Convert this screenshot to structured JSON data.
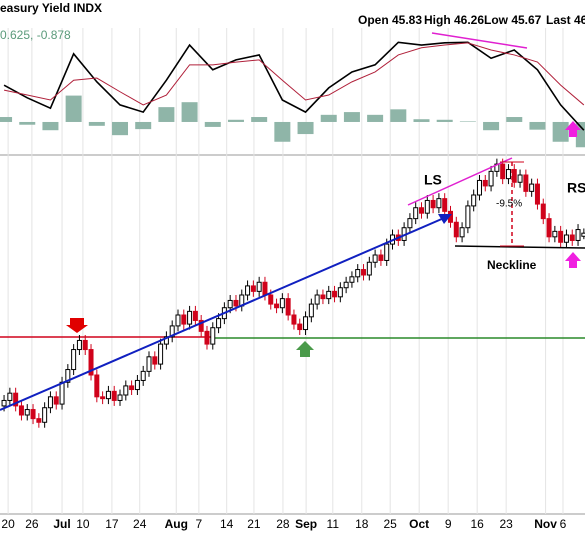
{
  "chart_data": {
    "type": "candlestick",
    "title": "easury Yield INDX",
    "header": [
      "Open 45.83",
      "High 46.26",
      "Low 45.67",
      "Last 46."
    ],
    "indicator_label": "0.625, -0.878",
    "annotations": [
      "LS",
      "RS",
      "Neckline",
      "-9.5%"
    ],
    "xlim": [
      -0.7,
      100.2
    ],
    "xticks": [
      {
        "value": 0.7,
        "label": "20"
      },
      {
        "value": 4.8,
        "label": "26"
      },
      {
        "value": 10,
        "label": "Jul"
      },
      {
        "value": 13.6,
        "label": "10"
      },
      {
        "value": 18.6,
        "label": "17"
      },
      {
        "value": 23.4,
        "label": "24"
      },
      {
        "value": 29.7,
        "label": "Aug"
      },
      {
        "value": 33.6,
        "label": "7"
      },
      {
        "value": 38.4,
        "label": "14"
      },
      {
        "value": 43.1,
        "label": "21"
      },
      {
        "value": 48.1,
        "label": "28"
      },
      {
        "value": 52.1,
        "label": "Sep"
      },
      {
        "value": 56.7,
        "label": "11"
      },
      {
        "value": 61.7,
        "label": "18"
      },
      {
        "value": 66.6,
        "label": "25"
      },
      {
        "value": 71.6,
        "label": "Oct"
      },
      {
        "value": 76.6,
        "label": "9"
      },
      {
        "value": 81.6,
        "label": "16"
      },
      {
        "value": 86.6,
        "label": "23"
      },
      {
        "value": 93.4,
        "label": "Nov"
      },
      {
        "value": 96.4,
        "label": "6"
      }
    ],
    "ylim": [
      30.5,
      50.3
    ],
    "up_color": "#000000",
    "down_color": "#d0021b",
    "open": [
      36.5,
      36.8,
      37.2,
      36.5,
      36.0,
      36.3,
      35.8,
      35.6,
      36.4,
      37.0,
      36.6,
      37.8,
      38.5,
      39.6,
      40.1,
      39.6,
      38.2,
      37.0,
      36.9,
      37.3,
      36.8,
      37.1,
      37.6,
      37.4,
      37.9,
      38.4,
      39.2,
      38.8,
      39.9,
      40.3,
      40.9,
      41.5,
      41.0,
      41.7,
      41.2,
      40.6,
      39.9,
      40.8,
      41.3,
      41.9,
      42.3,
      42.0,
      42.6,
      43.1,
      42.8,
      43.3,
      42.6,
      42.1,
      41.9,
      42.4,
      41.5,
      41.0,
      40.7,
      41.4,
      42.1,
      42.6,
      42.4,
      42.8,
      42.5,
      43.0,
      43.3,
      43.6,
      44.0,
      43.7,
      44.4,
      44.8,
      44.5,
      45.4,
      45.9,
      45.6,
      46.3,
      46.8,
      47.4,
      47.1,
      47.8,
      47.4,
      47.9,
      47.2,
      46.6,
      45.8,
      46.3,
      47.5,
      48.1,
      48.9,
      48.6,
      49.4,
      49.8,
      49.0,
      49.5,
      48.8,
      49.2,
      48.3,
      48.7,
      47.6,
      46.8,
      45.8,
      46.1,
      45.5,
      45.9,
      45.6,
      45.83
    ],
    "high": [
      37.1,
      37.5,
      37.5,
      36.8,
      36.6,
      36.6,
      36.1,
      36.7,
      37.3,
      37.3,
      38.1,
      38.8,
      39.9,
      40.4,
      40.4,
      39.9,
      38.5,
      37.3,
      37.6,
      37.6,
      37.4,
      37.9,
      37.9,
      38.2,
      38.7,
      39.5,
      39.5,
      40.2,
      40.6,
      41.2,
      41.8,
      41.8,
      42.0,
      42.0,
      41.5,
      40.9,
      41.1,
      41.6,
      42.2,
      42.6,
      42.6,
      42.9,
      43.4,
      43.4,
      43.6,
      43.6,
      42.9,
      42.4,
      42.7,
      42.7,
      41.8,
      41.3,
      41.7,
      42.4,
      42.9,
      42.9,
      43.1,
      43.1,
      43.3,
      43.6,
      43.9,
      44.3,
      44.3,
      44.7,
      45.1,
      45.1,
      45.7,
      46.2,
      46.2,
      46.6,
      47.1,
      47.7,
      47.7,
      48.1,
      48.1,
      48.2,
      48.2,
      47.5,
      46.9,
      46.6,
      47.8,
      48.4,
      49.2,
      49.2,
      49.7,
      50.1,
      50.1,
      49.8,
      49.8,
      49.5,
      49.5,
      49.0,
      49.0,
      47.9,
      47.1,
      46.4,
      46.4,
      46.2,
      46.2,
      46.5,
      46.26
    ],
    "low": [
      36.2,
      36.5,
      36.2,
      35.7,
      35.7,
      35.5,
      35.3,
      35.3,
      36.1,
      36.3,
      36.3,
      37.5,
      38.2,
      39.3,
      39.3,
      37.9,
      36.7,
      36.6,
      36.6,
      36.5,
      36.5,
      36.8,
      37.1,
      37.1,
      37.6,
      38.1,
      38.5,
      38.5,
      39.6,
      40.0,
      40.6,
      40.7,
      40.7,
      40.9,
      40.3,
      39.6,
      39.6,
      40.5,
      41.0,
      41.6,
      41.7,
      41.7,
      42.3,
      42.5,
      42.5,
      42.3,
      41.8,
      41.6,
      41.6,
      41.2,
      40.7,
      40.4,
      40.4,
      41.1,
      41.8,
      42.1,
      42.1,
      42.2,
      42.2,
      42.7,
      43.0,
      43.3,
      43.4,
      43.4,
      44.1,
      44.2,
      44.2,
      45.1,
      45.3,
      45.3,
      46.0,
      46.5,
      46.8,
      46.8,
      47.1,
      47.1,
      46.9,
      46.3,
      45.5,
      45.5,
      46.0,
      47.2,
      47.8,
      48.3,
      48.3,
      49.1,
      48.7,
      48.7,
      48.5,
      48.5,
      48.0,
      48.0,
      47.3,
      46.5,
      45.5,
      45.5,
      45.2,
      45.2,
      45.3,
      45.3,
      45.67
    ],
    "close": [
      36.8,
      37.2,
      36.5,
      36.0,
      36.3,
      35.8,
      35.6,
      36.4,
      37.0,
      36.6,
      37.8,
      38.5,
      39.6,
      40.1,
      39.6,
      38.2,
      37.0,
      36.9,
      37.3,
      36.8,
      37.1,
      37.6,
      37.4,
      37.9,
      38.4,
      39.2,
      38.8,
      39.9,
      40.3,
      40.9,
      41.5,
      41.0,
      41.7,
      41.2,
      40.6,
      39.9,
      40.8,
      41.3,
      41.9,
      42.3,
      42.0,
      42.6,
      43.1,
      42.8,
      43.3,
      42.6,
      42.1,
      41.9,
      42.4,
      41.5,
      41.0,
      40.7,
      41.4,
      42.1,
      42.6,
      42.4,
      42.8,
      42.5,
      43.0,
      43.3,
      43.6,
      44.0,
      43.7,
      44.4,
      44.8,
      44.5,
      45.4,
      45.9,
      45.6,
      46.3,
      46.8,
      47.4,
      47.1,
      47.8,
      47.4,
      47.9,
      47.2,
      46.6,
      45.8,
      46.3,
      47.5,
      48.1,
      48.9,
      48.6,
      49.4,
      49.8,
      49.0,
      49.5,
      48.8,
      49.2,
      48.3,
      48.7,
      47.6,
      46.8,
      45.8,
      46.1,
      45.5,
      45.9,
      45.6,
      46.2,
      46.0
    ],
    "macd": {
      "ylim": [
        -0.51,
        1.71
      ],
      "x": [
        0,
        4,
        8,
        12,
        16,
        20,
        24,
        28,
        32,
        36,
        40,
        44,
        48,
        52,
        56,
        60,
        64,
        68,
        72,
        76,
        80,
        84,
        88,
        92,
        96,
        100
      ],
      "series": [
        {
          "color": "#000000",
          "values": [
            0.67,
            0.44,
            0.25,
            1.24,
            0.73,
            0.31,
            0.18,
            0.76,
            1.4,
            0.95,
            1.13,
            1.22,
            0.4,
            0.18,
            0.62,
            0.91,
            1.04,
            1.45,
            1.4,
            1.44,
            1.45,
            1.16,
            1.31,
            0.95,
            0.31,
            -0.15
          ]
        },
        {
          "color": "#b0203a",
          "values": [
            0.58,
            0.49,
            0.4,
            0.76,
            0.8,
            0.55,
            0.31,
            0.49,
            1.04,
            1.04,
            1.09,
            1.13,
            0.76,
            0.4,
            0.49,
            0.73,
            0.91,
            1.22,
            1.35,
            1.4,
            1.44,
            1.31,
            1.22,
            1.09,
            0.67,
            0.31
          ]
        }
      ],
      "histogram": {
        "color": "#8fb5a8",
        "values": [
          0.09,
          -0.05,
          -0.15,
          0.48,
          -0.07,
          -0.24,
          -0.13,
          0.27,
          0.36,
          -0.09,
          0.04,
          0.09,
          -0.36,
          -0.22,
          0.13,
          0.18,
          0.13,
          0.23,
          0.05,
          0.04,
          0.01,
          -0.15,
          0.09,
          -0.14,
          -0.36,
          -0.46
        ]
      }
    }
  }
}
